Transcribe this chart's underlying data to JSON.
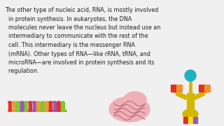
{
  "background_color": "#f0f0f0",
  "text_lines": [
    "The other type of nucleic acid, RNA, is mostly involved",
    "  in protein synthesis. In eukaryotes, the DNA",
    "  molecules never leave the nucleus but instead use an",
    "  intermediary to communicate with the rest of the",
    "  cell. This intermediary is the messenger RNA",
    "  (mRNA). Other types of RNA—like rRNA, tRNA, and",
    "  microRNA—are involved in protein synthesis and its",
    "  regulation."
  ],
  "text_fontsize": 5.8,
  "text_color": "#222222",
  "mrna_colors": [
    "#e63030",
    "#e6a030",
    "#7dc832",
    "#9b59b6",
    "#7dc832",
    "#e63030",
    "#9b59b6",
    "#e6a030",
    "#7dc832",
    "#e6a030",
    "#e63030",
    "#9b59b6",
    "#e63030",
    "#7dc832"
  ],
  "fig_width": 3.2,
  "fig_height": 1.8,
  "dpi": 100
}
